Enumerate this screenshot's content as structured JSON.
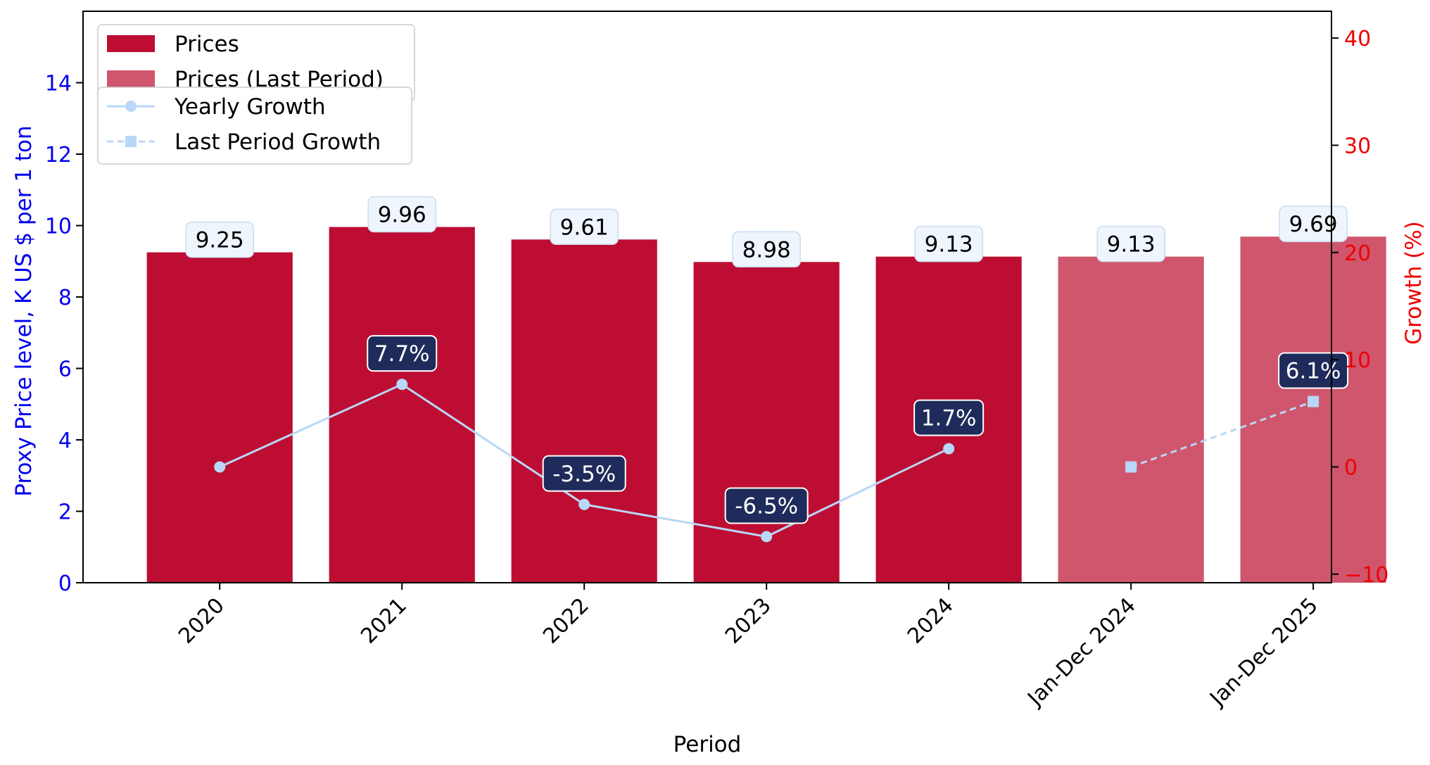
{
  "chart_data": {
    "type": "bar",
    "categories": [
      "2020",
      "2021",
      "2022",
      "2023",
      "2024",
      "Jan-Dec 2024",
      "Jan-Dec 2025"
    ],
    "series": [
      {
        "name": "Prices",
        "kind": "bar",
        "values": [
          9.25,
          9.96,
          9.61,
          8.98,
          9.13,
          null,
          null
        ],
        "color": "#bd0d32"
      },
      {
        "name": "Prices (Last Period)",
        "kind": "bar",
        "values": [
          null,
          null,
          null,
          null,
          null,
          9.13,
          9.69
        ],
        "color": "#d0566d"
      },
      {
        "name": "Yearly Growth",
        "kind": "line",
        "axis": "right",
        "marker": "circle",
        "values": [
          0.0,
          7.7,
          -3.5,
          -6.5,
          1.7,
          null,
          null
        ],
        "color": "#b9d7f7"
      },
      {
        "name": "Last Period Growth",
        "kind": "line",
        "axis": "right",
        "marker": "square",
        "dashed": true,
        "values": [
          null,
          null,
          null,
          null,
          null,
          0.0,
          6.1
        ],
        "color": "#b9d7f7"
      }
    ],
    "price_labels": [
      "9.25",
      "9.96",
      "9.61",
      "8.98",
      "9.13",
      "9.13",
      "9.69"
    ],
    "growth_labels": [
      null,
      "7.7%",
      "-3.5%",
      "-6.5%",
      "1.7%",
      null,
      "6.1%"
    ],
    "xlabel": "Period",
    "ylabel": "Proxy Price level, K US $ per 1 ton",
    "ylabel_right": "Growth (%)",
    "ylim": [
      0,
      16
    ],
    "ylim_right": [
      -10.8,
      42.5
    ],
    "yticks": [
      0,
      2,
      4,
      6,
      8,
      10,
      12,
      14
    ],
    "yticks_right": [
      -10,
      0,
      10,
      20,
      30,
      40
    ],
    "grid": false,
    "legend_placement": "top-left",
    "label_colors": {
      "left_axis": "#0000ee",
      "right_axis": "#ee0000",
      "growth_box": "#1f2b5a",
      "price_box": "#eef5fc"
    }
  }
}
